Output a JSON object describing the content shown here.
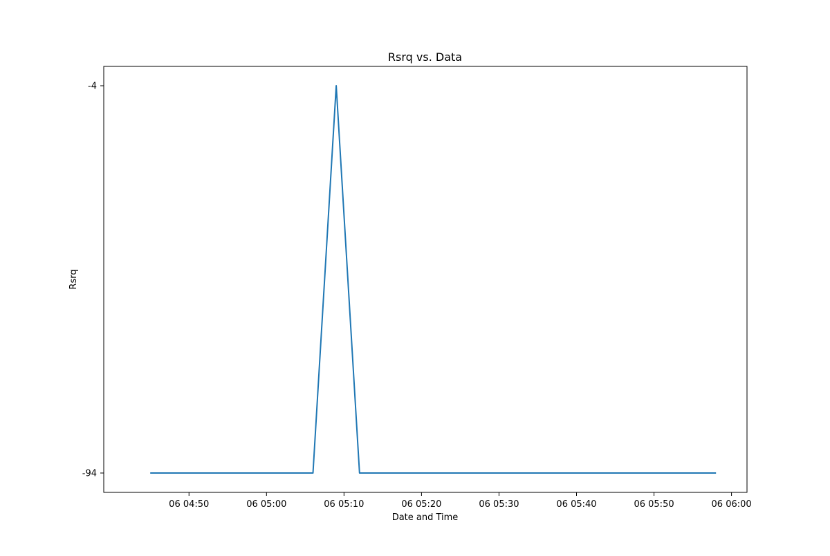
{
  "chart_data": {
    "type": "line",
    "title": "Rsrq vs. Data",
    "xlabel": "Date and Time",
    "ylabel": "Rsrq",
    "x_ticks": [
      {
        "time": "04:50",
        "label": "06 04:50"
      },
      {
        "time": "05:00",
        "label": "06 05:00"
      },
      {
        "time": "05:10",
        "label": "06 05:10"
      },
      {
        "time": "05:20",
        "label": "06 05:20"
      },
      {
        "time": "05:30",
        "label": "06 05:30"
      },
      {
        "time": "05:40",
        "label": "06 05:40"
      },
      {
        "time": "05:50",
        "label": "06 05:50"
      },
      {
        "time": "06:00",
        "label": "06 06:00"
      }
    ],
    "y_ticks": [
      {
        "value": -4,
        "label": "-4"
      },
      {
        "value": -94,
        "label": "-94"
      }
    ],
    "xlim": [
      "04:39",
      "06:02"
    ],
    "ylim": [
      -98.5,
      0.5
    ],
    "grid": false,
    "series": [
      {
        "color": "#1f77b4",
        "points": [
          {
            "x": "04:45",
            "y": -94
          },
          {
            "x": "05:06",
            "y": -94
          },
          {
            "x": "05:09",
            "y": -4
          },
          {
            "x": "05:12",
            "y": -94
          },
          {
            "x": "05:58",
            "y": -94
          }
        ]
      }
    ]
  }
}
